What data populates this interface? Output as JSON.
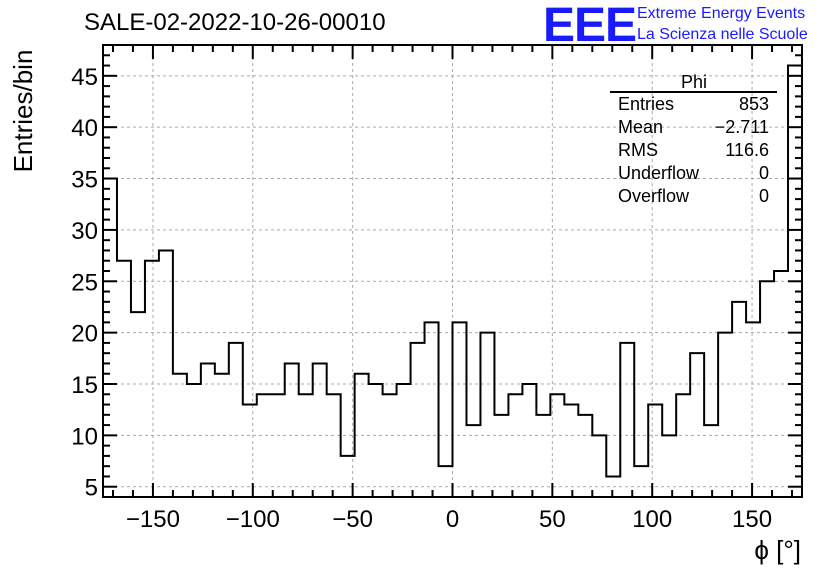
{
  "title": "SALE-02-2022-10-26-00010",
  "logo": {
    "mark": "EEE",
    "line1": "Extreme Energy Events",
    "line2": "La Scienza nelle Scuole",
    "color": "#1a1aff"
  },
  "stats_box": {
    "name": "Phi",
    "rows": [
      {
        "label": "Entries",
        "value": "853"
      },
      {
        "label": "Mean",
        "value": "−2.711"
      },
      {
        "label": "RMS",
        "value": "116.6"
      },
      {
        "label": "Underflow",
        "value": "0"
      },
      {
        "label": "Overflow",
        "value": "0"
      }
    ]
  },
  "chart_data": {
    "type": "histogram",
    "xlabel": "ϕ [°]",
    "ylabel": "Entries/bin",
    "xlim": [
      -175,
      175
    ],
    "ylim": [
      4,
      48
    ],
    "bin_width": 7,
    "x_ticks": [
      -150,
      -100,
      -50,
      0,
      50,
      100,
      150
    ],
    "x_tick_labels": [
      "−150",
      "−100",
      "−50",
      "0",
      "50",
      "100",
      "150"
    ],
    "y_ticks": [
      5,
      10,
      15,
      20,
      25,
      30,
      35,
      40,
      45
    ],
    "y_tick_labels": [
      "5",
      "10",
      "15",
      "20",
      "25",
      "30",
      "35",
      "40",
      "45"
    ],
    "grid": true,
    "values": [
      35,
      27,
      22,
      27,
      28,
      16,
      15,
      17,
      16,
      19,
      13,
      14,
      14,
      17,
      14,
      17,
      14,
      8,
      16,
      15,
      14,
      15,
      19,
      21,
      7,
      21,
      11,
      20,
      12,
      14,
      15,
      12,
      14,
      13,
      12,
      10,
      6,
      19,
      7,
      13,
      10,
      14,
      18,
      11,
      20,
      23,
      21,
      25,
      26,
      46
    ]
  }
}
